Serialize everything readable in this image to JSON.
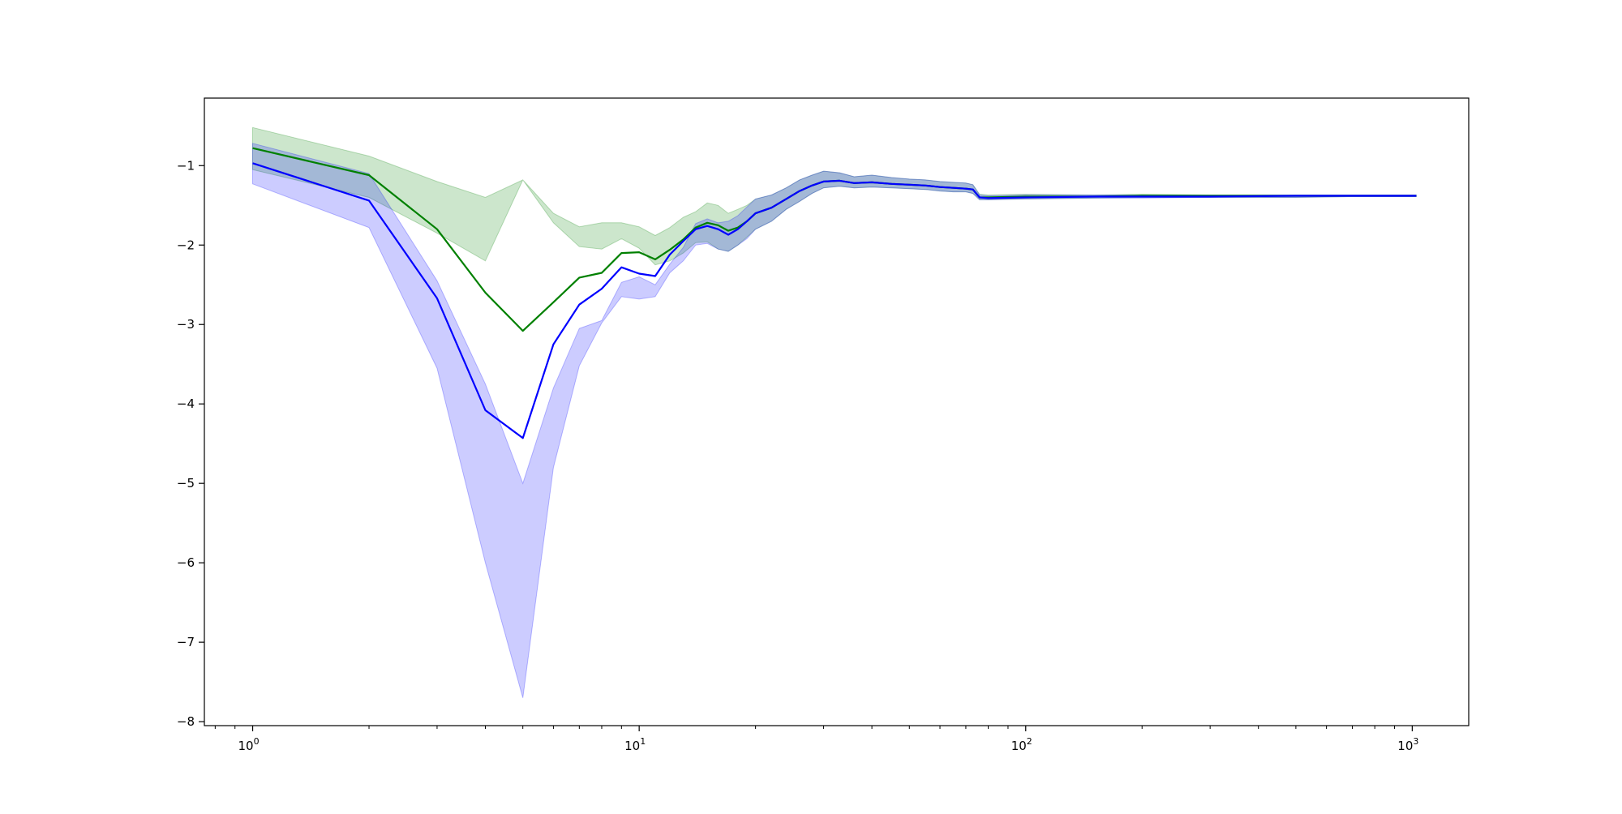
{
  "chart_data": {
    "type": "area",
    "title": "",
    "xlabel": "",
    "ylabel": "",
    "xscale": "log",
    "xlim": [
      0.75,
      1400
    ],
    "ylim": [
      -8.05,
      -0.15
    ],
    "grid": false,
    "legend": "none",
    "x_ticks": [
      {
        "value": 1,
        "base": "10",
        "exp": "0"
      },
      {
        "value": 10,
        "base": "10",
        "exp": "1"
      },
      {
        "value": 100,
        "base": "10",
        "exp": "2"
      },
      {
        "value": 1000,
        "base": "10",
        "exp": "3"
      }
    ],
    "y_ticks": [
      {
        "value": -1,
        "label": "−1"
      },
      {
        "value": -2,
        "label": "−2"
      },
      {
        "value": -3,
        "label": "−3"
      },
      {
        "value": -4,
        "label": "−4"
      },
      {
        "value": -5,
        "label": "−5"
      },
      {
        "value": -6,
        "label": "−6"
      },
      {
        "value": -7,
        "label": "−7"
      },
      {
        "value": -8,
        "label": "−8"
      }
    ],
    "series": [
      {
        "color": "#008000",
        "band_color": "#008000",
        "band_opacity": 0.2,
        "x": [
          1,
          2,
          3,
          4,
          5,
          6,
          7,
          8,
          9,
          10,
          11,
          12,
          13,
          14,
          15,
          16,
          17,
          18,
          19,
          20,
          22,
          24,
          26,
          28,
          30,
          33,
          36,
          40,
          45,
          50,
          55,
          60,
          65,
          70,
          73,
          76,
          80,
          100,
          150,
          200,
          300,
          500,
          700,
          1024
        ],
        "y": [
          -0.78,
          -1.12,
          -1.8,
          -2.6,
          -3.08,
          -2.72,
          -2.41,
          -2.35,
          -2.1,
          -2.09,
          -2.18,
          -2.06,
          -1.93,
          -1.78,
          -1.72,
          -1.75,
          -1.82,
          -1.78,
          -1.7,
          -1.6,
          -1.53,
          -1.42,
          -1.32,
          -1.25,
          -1.2,
          -1.19,
          -1.22,
          -1.21,
          -1.23,
          -1.24,
          -1.25,
          -1.27,
          -1.28,
          -1.29,
          -1.3,
          -1.4,
          -1.4,
          -1.39,
          -1.39,
          -1.38,
          -1.38,
          -1.38,
          -1.38,
          -1.38
        ],
        "lower": [
          -1.05,
          -1.4,
          -1.85,
          -2.2,
          -1.18,
          -1.72,
          -2.02,
          -2.05,
          -1.92,
          -2.04,
          -2.25,
          -2.2,
          -2.1,
          -1.97,
          -1.96,
          -2.05,
          -2.08,
          -2.0,
          -1.9,
          -1.8,
          -1.7,
          -1.55,
          -1.45,
          -1.35,
          -1.28,
          -1.26,
          -1.28,
          -1.27,
          -1.28,
          -1.29,
          -1.3,
          -1.32,
          -1.33,
          -1.33,
          -1.35,
          -1.43,
          -1.43,
          -1.42,
          -1.41,
          -1.4,
          -1.4,
          -1.4,
          -1.39,
          -1.39
        ],
        "upper": [
          -0.52,
          -0.88,
          -1.2,
          -1.4,
          -1.18,
          -1.6,
          -1.77,
          -1.72,
          -1.72,
          -1.77,
          -1.88,
          -1.78,
          -1.65,
          -1.58,
          -1.47,
          -1.5,
          -1.6,
          -1.55,
          -1.5,
          -1.42,
          -1.37,
          -1.28,
          -1.18,
          -1.12,
          -1.07,
          -1.09,
          -1.14,
          -1.12,
          -1.15,
          -1.17,
          -1.18,
          -1.2,
          -1.21,
          -1.22,
          -1.24,
          -1.36,
          -1.37,
          -1.36,
          -1.37,
          -1.36,
          -1.37,
          -1.37,
          -1.37,
          -1.37
        ]
      },
      {
        "color": "#0000ff",
        "band_color": "#0000ff",
        "band_opacity": 0.2,
        "x": [
          1,
          2,
          3,
          4,
          5,
          6,
          7,
          8,
          9,
          10,
          11,
          12,
          13,
          14,
          15,
          16,
          17,
          18,
          19,
          20,
          22,
          24,
          26,
          28,
          30,
          33,
          36,
          40,
          45,
          50,
          55,
          60,
          65,
          70,
          73,
          76,
          80,
          100,
          150,
          200,
          300,
          500,
          700,
          1024
        ],
        "y": [
          -0.97,
          -1.44,
          -2.67,
          -4.08,
          -4.43,
          -3.25,
          -2.75,
          -2.55,
          -2.28,
          -2.36,
          -2.39,
          -2.12,
          -1.95,
          -1.8,
          -1.76,
          -1.8,
          -1.87,
          -1.8,
          -1.7,
          -1.6,
          -1.53,
          -1.42,
          -1.32,
          -1.25,
          -1.2,
          -1.19,
          -1.22,
          -1.21,
          -1.23,
          -1.24,
          -1.25,
          -1.27,
          -1.28,
          -1.29,
          -1.3,
          -1.4,
          -1.41,
          -1.4,
          -1.39,
          -1.39,
          -1.39,
          -1.38,
          -1.38,
          -1.38
        ],
        "lower": [
          -1.23,
          -1.78,
          -3.55,
          -6.0,
          -7.7,
          -4.8,
          -3.52,
          -2.98,
          -2.65,
          -2.68,
          -2.65,
          -2.35,
          -2.2,
          -2.0,
          -1.98,
          -2.05,
          -2.08,
          -2.0,
          -1.92,
          -1.8,
          -1.7,
          -1.55,
          -1.45,
          -1.35,
          -1.28,
          -1.26,
          -1.28,
          -1.27,
          -1.28,
          -1.29,
          -1.3,
          -1.32,
          -1.33,
          -1.33,
          -1.35,
          -1.43,
          -1.43,
          -1.42,
          -1.41,
          -1.41,
          -1.4,
          -1.4,
          -1.39,
          -1.39
        ],
        "upper": [
          -0.72,
          -1.1,
          -2.45,
          -3.75,
          -5.0,
          -3.8,
          -3.05,
          -2.95,
          -2.47,
          -2.4,
          -2.5,
          -2.24,
          -2.03,
          -1.73,
          -1.67,
          -1.72,
          -1.7,
          -1.63,
          -1.52,
          -1.42,
          -1.37,
          -1.28,
          -1.18,
          -1.12,
          -1.07,
          -1.09,
          -1.14,
          -1.12,
          -1.15,
          -1.17,
          -1.18,
          -1.2,
          -1.21,
          -1.22,
          -1.24,
          -1.37,
          -1.38,
          -1.37,
          -1.37,
          -1.37,
          -1.37,
          -1.37,
          -1.37,
          -1.37
        ]
      }
    ]
  }
}
